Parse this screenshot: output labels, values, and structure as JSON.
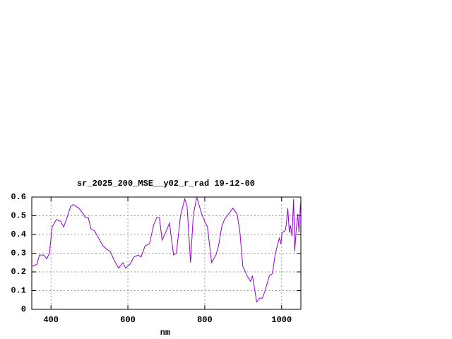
{
  "chart_data": {
    "type": "line",
    "title": "sr_2025_200_MSE__y02_r_rad 19-12-00",
    "x_label": "nm",
    "xlim": [
      350,
      1050
    ],
    "xticks": [
      400,
      600,
      800,
      1000
    ],
    "ylim": [
      0,
      0.6
    ],
    "yticks": [
      0,
      0.1,
      0.2,
      0.3,
      0.4,
      0.5,
      0.6
    ],
    "grid": true,
    "series": [
      {
        "color": "#9400d3",
        "x": [
          350,
          363,
          370,
          381,
          389,
          396,
          403,
          414,
          425,
          433,
          440,
          451,
          458,
          473,
          484,
          489,
          497,
          504,
          513,
          524,
          535,
          546,
          554,
          565,
          576,
          587,
          594,
          605,
          616,
          627,
          634,
          645,
          656,
          667,
          675,
          682,
          689,
          700,
          708,
          719,
          726,
          737,
          748,
          754,
          763,
          770,
          779,
          792,
          800,
          807,
          818,
          829,
          836,
          844,
          851,
          862,
          873,
          884,
          891,
          899,
          910,
          919,
          924,
          928,
          935,
          943,
          950,
          957,
          968,
          976,
          983,
          990,
          994,
          998,
          1001,
          1009,
          1012,
          1016,
          1020,
          1023,
          1027,
          1031,
          1034,
          1038,
          1042,
          1045,
          1049
        ],
        "values": [
          0.23,
          0.24,
          0.29,
          0.29,
          0.27,
          0.3,
          0.44,
          0.48,
          0.47,
          0.44,
          0.48,
          0.55,
          0.56,
          0.54,
          0.51,
          0.49,
          0.49,
          0.43,
          0.42,
          0.38,
          0.34,
          0.32,
          0.31,
          0.26,
          0.22,
          0.25,
          0.22,
          0.24,
          0.28,
          0.29,
          0.28,
          0.34,
          0.35,
          0.45,
          0.49,
          0.49,
          0.37,
          0.42,
          0.46,
          0.29,
          0.3,
          0.5,
          0.59,
          0.55,
          0.25,
          0.5,
          0.6,
          0.51,
          0.47,
          0.44,
          0.25,
          0.29,
          0.34,
          0.44,
          0.48,
          0.51,
          0.54,
          0.51,
          0.42,
          0.23,
          0.18,
          0.15,
          0.18,
          0.13,
          0.04,
          0.06,
          0.06,
          0.1,
          0.18,
          0.19,
          0.29,
          0.35,
          0.38,
          0.35,
          0.41,
          0.42,
          0.45,
          0.54,
          0.41,
          0.45,
          0.39,
          0.59,
          0.31,
          0.43,
          0.51,
          0.41,
          0.57
        ]
      }
    ]
  }
}
